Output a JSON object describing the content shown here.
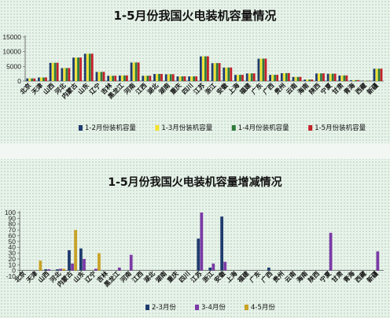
{
  "chart_data": [
    {
      "type": "bar",
      "title": "1-5月份我国火电装机容量情况",
      "xlabel": "",
      "ylabel": "",
      "ylim": [
        0,
        15000
      ],
      "yticks": [
        0,
        5000,
        10000,
        15000
      ],
      "grid": false,
      "legend": "bottom",
      "categories": [
        "北京",
        "天津",
        "山西",
        "河北",
        "内蒙古",
        "山东",
        "辽宁",
        "吉林",
        "黑龙江",
        "河南",
        "江西",
        "湖北",
        "湖南",
        "重庆",
        "四川",
        "江苏",
        "浙江",
        "安徽",
        "上海",
        "福建",
        "广东",
        "广西",
        "贵州",
        "云南",
        "海南",
        "陕西",
        "宁夏",
        "甘肃",
        "青海",
        "西藏",
        "新疆"
      ],
      "series": [
        {
          "name": "1-2月份装机容量",
          "color": "#1f3b6e",
          "values": [
            900,
            1200,
            6200,
            4400,
            8000,
            9300,
            3100,
            1800,
            1900,
            6300,
            1800,
            2400,
            2300,
            1600,
            1600,
            8400,
            6100,
            4600,
            2100,
            2600,
            7600,
            2100,
            2700,
            1400,
            500,
            2600,
            2500,
            1900,
            300,
            100,
            4200
          ]
        },
        {
          "name": "1-3月份装机容量",
          "color": "#f2e230",
          "values": [
            900,
            1210,
            6210,
            4410,
            8010,
            9310,
            3110,
            1810,
            1910,
            6310,
            1810,
            2410,
            2310,
            1610,
            1610,
            8410,
            6110,
            4610,
            2110,
            2610,
            7610,
            2110,
            2710,
            1410,
            510,
            2610,
            2510,
            1910,
            310,
            100,
            4210
          ]
        },
        {
          "name": "1-4月份装机容量",
          "color": "#2f7a3a",
          "values": [
            900,
            1220,
            6220,
            4420,
            8020,
            9320,
            3120,
            1820,
            1920,
            6320,
            1820,
            2420,
            2320,
            1620,
            1620,
            8420,
            6120,
            4620,
            2120,
            2620,
            7620,
            2120,
            2720,
            1420,
            520,
            2620,
            2520,
            1920,
            320,
            100,
            4220
          ]
        },
        {
          "name": "1-5月份装机容量",
          "color": "#c4202a",
          "values": [
            900,
            1230,
            6230,
            4430,
            8030,
            9330,
            3130,
            1830,
            1930,
            6330,
            1830,
            2430,
            2330,
            1630,
            1630,
            8430,
            6130,
            4630,
            2130,
            2630,
            7630,
            2130,
            2730,
            1430,
            530,
            2630,
            2530,
            1930,
            330,
            100,
            4230
          ]
        }
      ]
    },
    {
      "type": "bar",
      "title": "1-5月份我国火电装机容量增减情况",
      "xlabel": "",
      "ylabel": "",
      "ylim": [
        -10,
        100
      ],
      "yticks": [
        -10,
        0,
        10,
        20,
        30,
        40,
        50,
        60,
        70,
        80,
        90,
        100
      ],
      "grid": false,
      "legend": "bottom",
      "categories": [
        "北京",
        "天津",
        "山西",
        "河北",
        "内蒙古",
        "山东",
        "辽宁",
        "吉林",
        "黑龙江",
        "河南",
        "江西",
        "湖北",
        "湖南",
        "重庆",
        "四川",
        "江苏",
        "浙江",
        "安徽",
        "上海",
        "福建",
        "广东",
        "广西",
        "贵州",
        "云南",
        "海南",
        "陕西",
        "宁夏",
        "甘肃",
        "青海",
        "西藏",
        "新疆"
      ],
      "series": [
        {
          "name": "2-3月份",
          "color": "#1f3b6e",
          "values": [
            0,
            0,
            2,
            2,
            35,
            38,
            0,
            0,
            0,
            0,
            0,
            0,
            0,
            0,
            0,
            55,
            5,
            93,
            0,
            0,
            0,
            5,
            0,
            0,
            0,
            0,
            0,
            0,
            0,
            0,
            0
          ]
        },
        {
          "name": "3-4月份",
          "color": "#7b3aa6",
          "values": [
            0,
            0,
            2,
            3,
            12,
            20,
            3,
            0,
            5,
            27,
            0,
            0,
            0,
            0,
            0,
            100,
            12,
            15,
            0,
            0,
            0,
            0,
            0,
            0,
            0,
            0,
            65,
            0,
            0,
            0,
            33
          ]
        },
        {
          "name": "4-5月份",
          "color": "#c9a227",
          "values": [
            0,
            17,
            0,
            3,
            70,
            0,
            30,
            0,
            0,
            0,
            0,
            0,
            0,
            0,
            0,
            0,
            0,
            0,
            0,
            0,
            0,
            0,
            0,
            0,
            0,
            0,
            0,
            0,
            0,
            0,
            0
          ]
        }
      ]
    }
  ]
}
